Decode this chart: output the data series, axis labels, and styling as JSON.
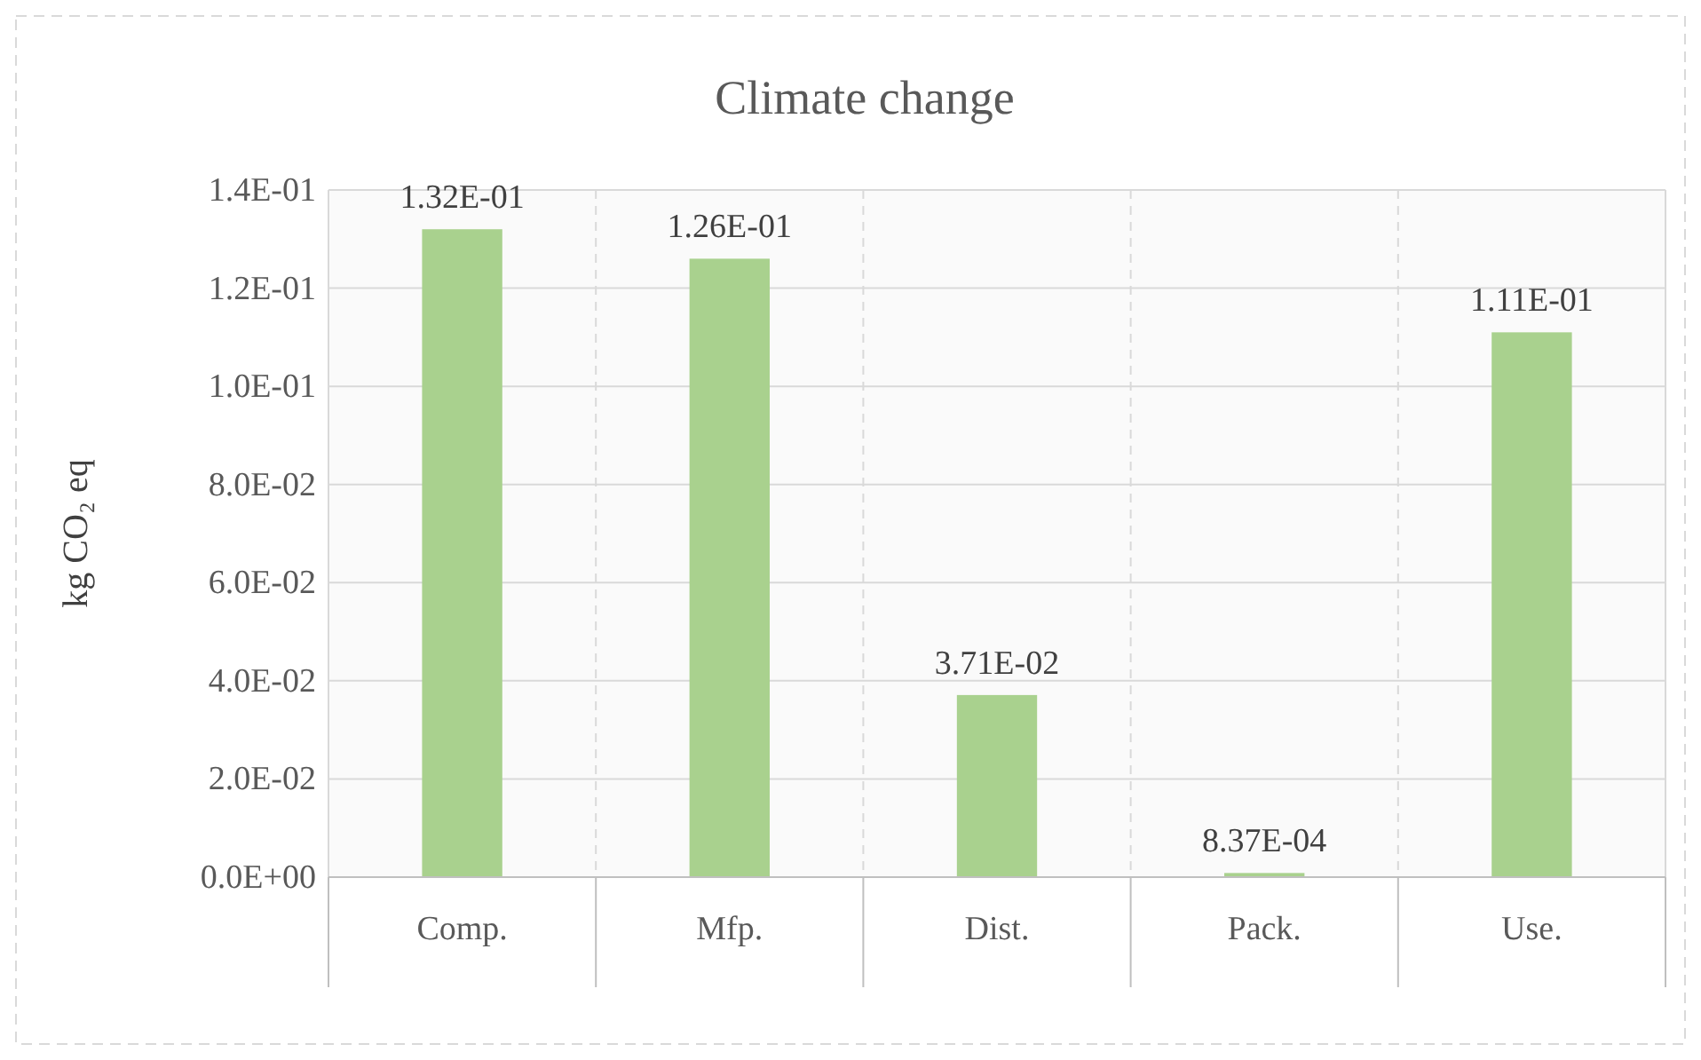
{
  "chart_data": {
    "type": "bar",
    "title": "Climate change",
    "ylabel": "kg CO₂ eq",
    "categories": [
      "Comp.",
      "Mfp.",
      "Dist.",
      "Pack.",
      "Use."
    ],
    "values": [
      0.132,
      0.126,
      0.0371,
      0.000837,
      0.111
    ],
    "value_labels": [
      "1.32E-01",
      "1.26E-01",
      "3.71E-02",
      "8.37E-04",
      "1.11E-01"
    ],
    "color": "#a9d18e",
    "ylim": [
      0,
      0.14
    ],
    "yticks": [
      {
        "value": 0,
        "label": "0.0E+00"
      },
      {
        "value": 0.02,
        "label": "2.0E-02"
      },
      {
        "value": 0.04,
        "label": "4.0E-02"
      },
      {
        "value": 0.06,
        "label": "6.0E-02"
      },
      {
        "value": 0.08,
        "label": "8.0E-02"
      },
      {
        "value": 0.1,
        "label": "1.0E-01"
      },
      {
        "value": 0.12,
        "label": "1.2E-01"
      },
      {
        "value": 0.14,
        "label": "1.4E-01"
      }
    ],
    "grid": true
  }
}
